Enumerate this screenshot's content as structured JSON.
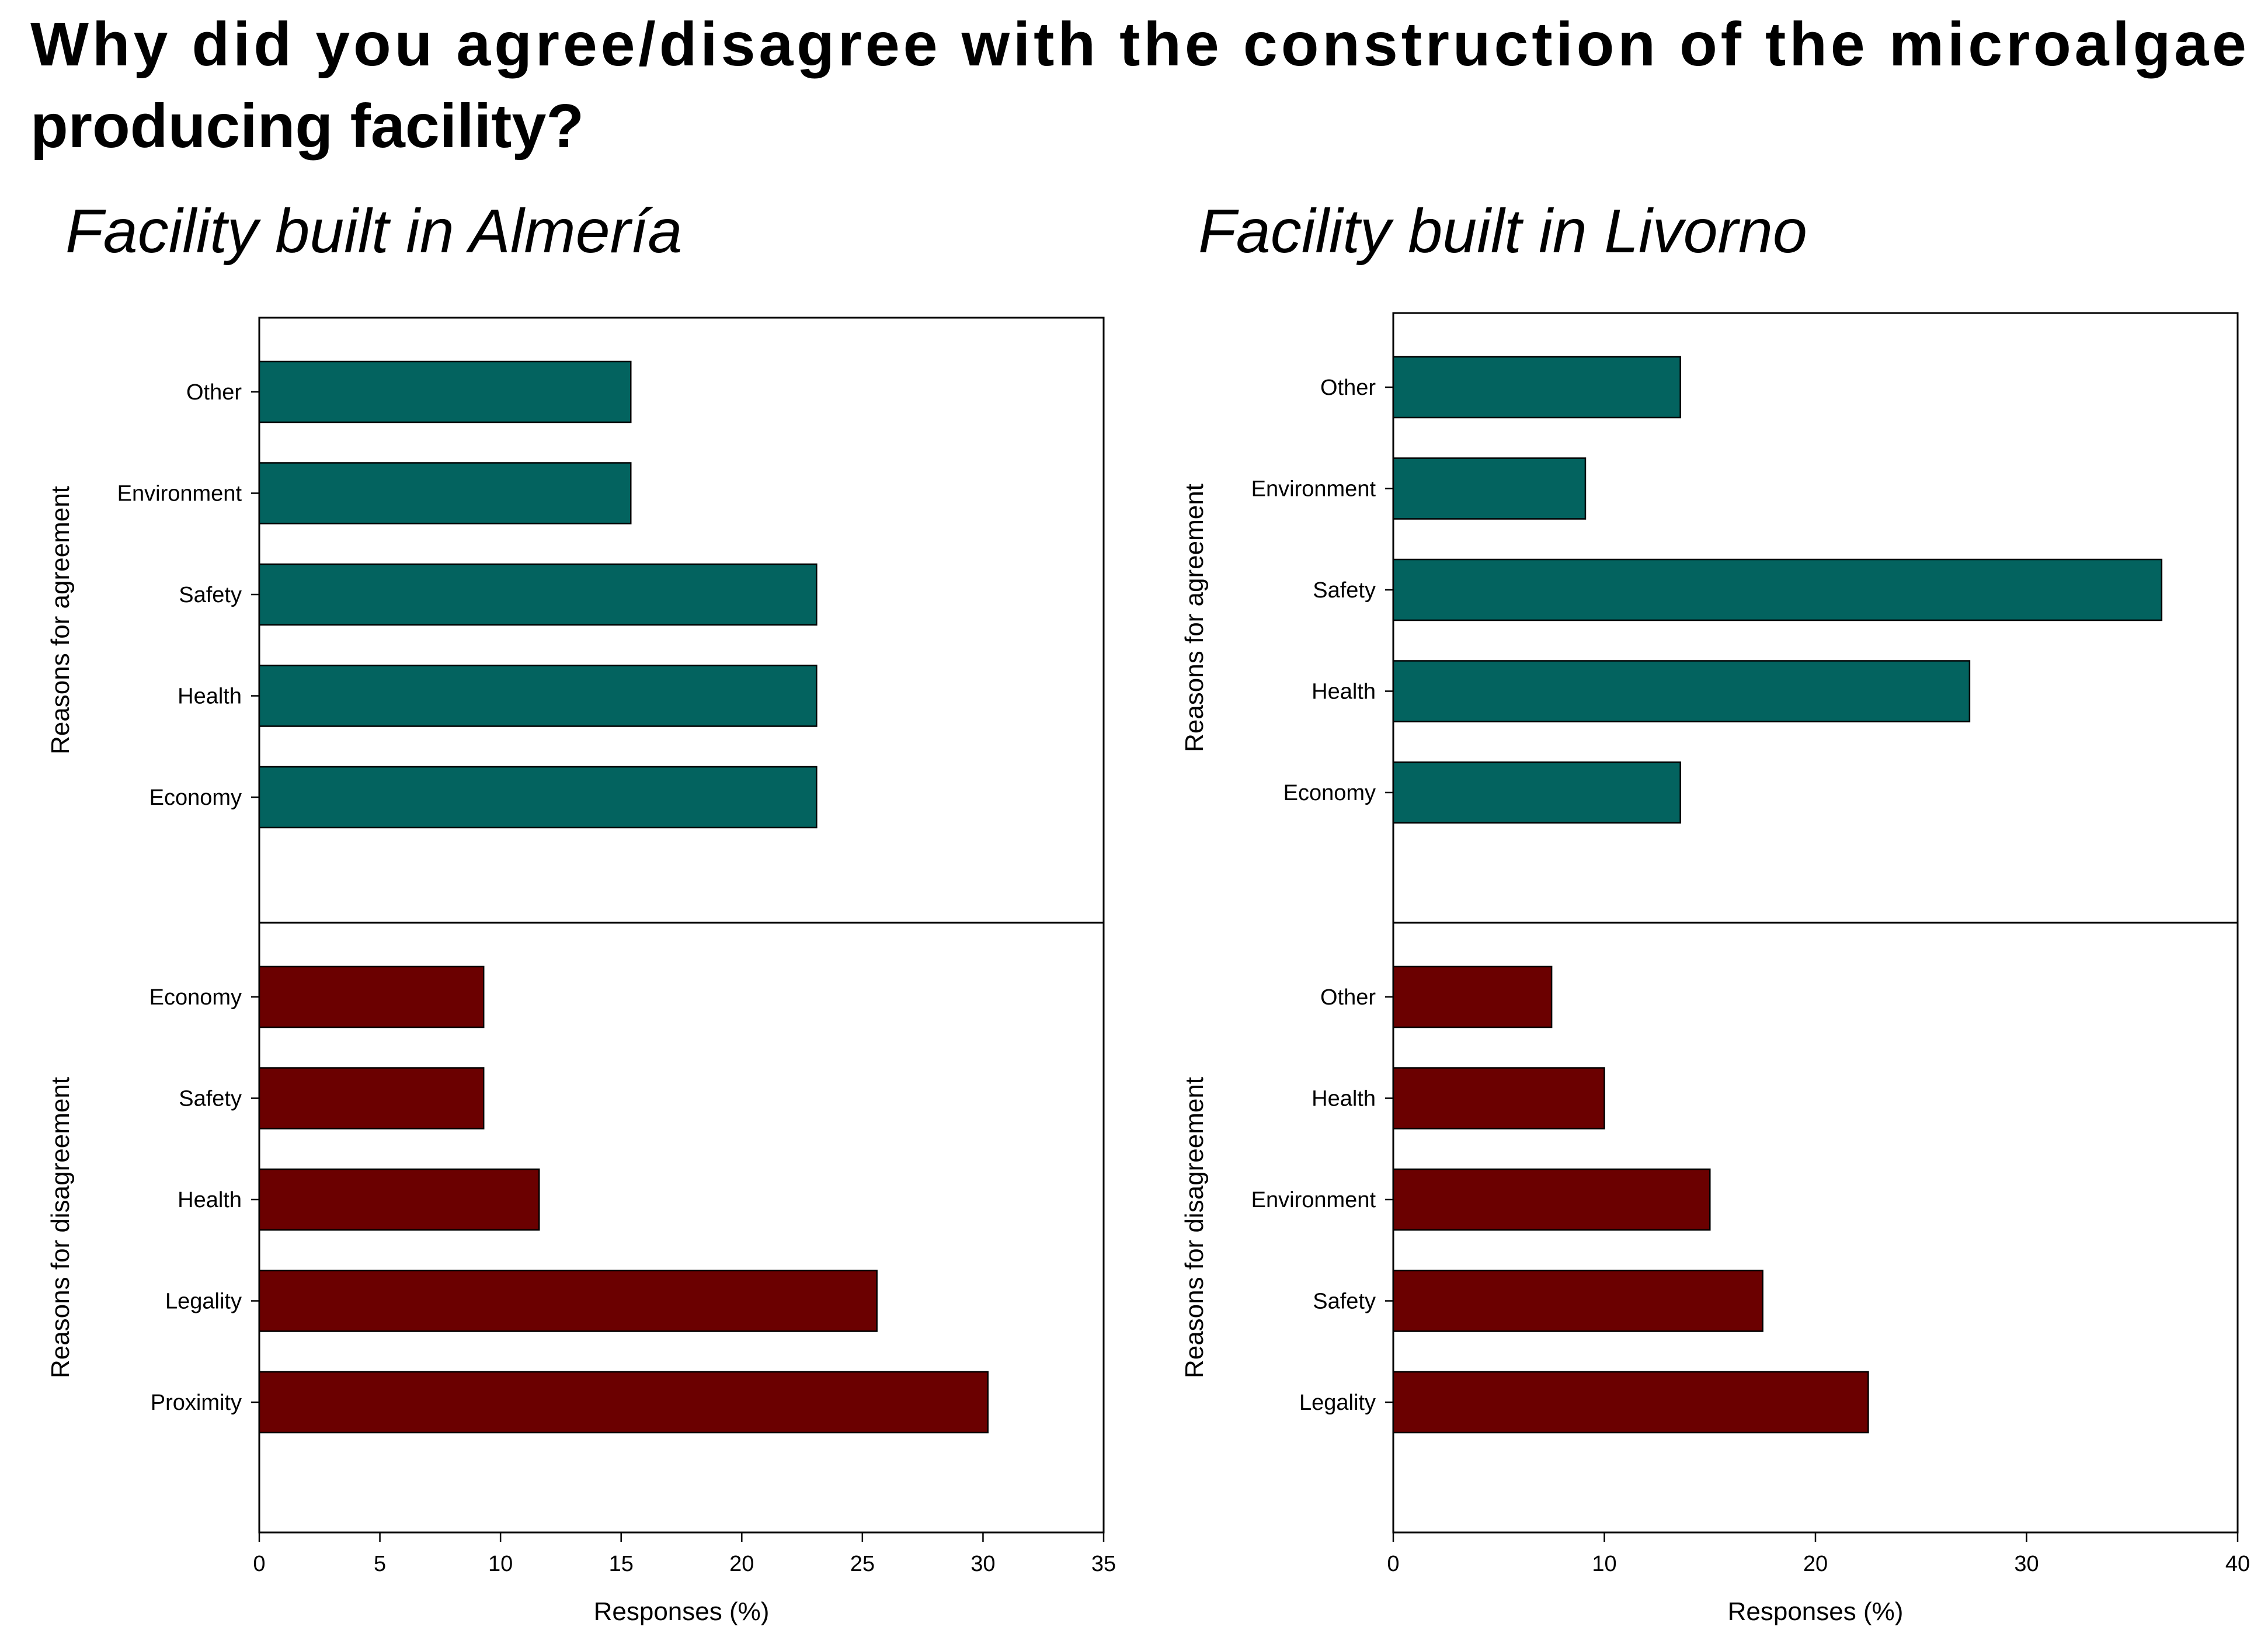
{
  "title_line1": "Why did you agree/disagree with the construction of the microalgae",
  "title_line2": "producing facility?",
  "colors": {
    "agreement": "#03635F",
    "disagreement": "#6B0000",
    "frame": "#000000"
  },
  "chart_data": [
    {
      "type": "bar",
      "orientation": "horizontal",
      "title": "Facility built in Almería",
      "xlabel": "Responses (%)",
      "xlim": [
        0,
        35
      ],
      "xticks": [
        0,
        5,
        10,
        15,
        20,
        25,
        30,
        35
      ],
      "panels": [
        {
          "ylabel": "Reasons for agreement",
          "color_key": "agreement",
          "categories": [
            "Other",
            "Environment",
            "Safety",
            "Health",
            "Economy"
          ],
          "values": [
            15.4,
            15.4,
            23.1,
            23.1,
            23.1
          ]
        },
        {
          "ylabel": "Reasons for disagreement",
          "color_key": "disagreement",
          "categories": [
            "Economy",
            "Safety",
            "Health",
            "Legality",
            "Proximity"
          ],
          "values": [
            9.3,
            9.3,
            11.6,
            25.6,
            30.2
          ]
        }
      ]
    },
    {
      "type": "bar",
      "orientation": "horizontal",
      "title": "Facility built in Livorno",
      "xlabel": "Responses (%)",
      "xlim": [
        0,
        40
      ],
      "xticks": [
        0,
        10,
        20,
        30,
        40
      ],
      "panels": [
        {
          "ylabel": "Reasons for agreement",
          "color_key": "agreement",
          "categories": [
            "Other",
            "Environment",
            "Safety",
            "Health",
            "Economy"
          ],
          "values": [
            13.6,
            9.1,
            36.4,
            27.3,
            13.6
          ]
        },
        {
          "ylabel": "Reasons for disagreement",
          "color_key": "disagreement",
          "categories": [
            "Other",
            "Health",
            "Environment",
            "Safety",
            "Legality"
          ],
          "values": [
            7.5,
            10.0,
            15.0,
            17.5,
            22.5
          ]
        }
      ]
    }
  ]
}
